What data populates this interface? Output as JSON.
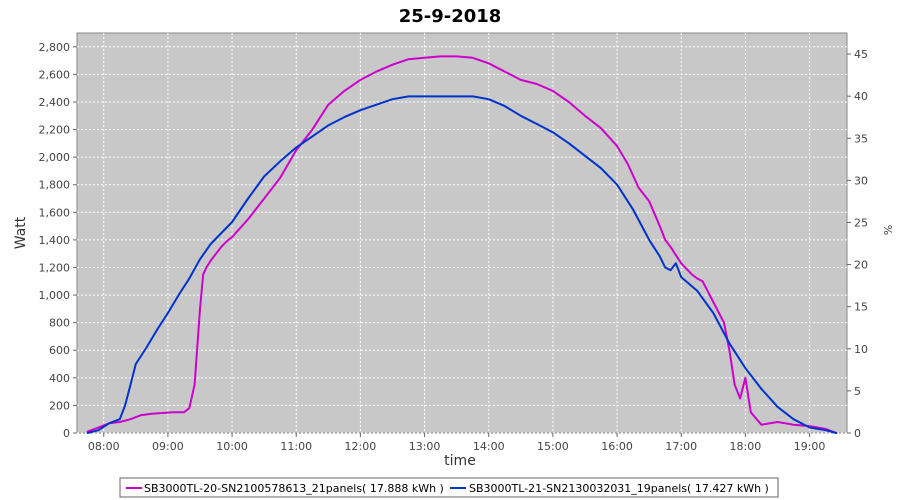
{
  "chart_data": {
    "type": "line",
    "title": "25-9-2018",
    "xlabel": "time",
    "ylabel": "Watt",
    "y2label": "%",
    "xlim": [
      "07:35",
      "19:35"
    ],
    "ylim": [
      0,
      2900
    ],
    "y2lim": [
      0,
      47.5
    ],
    "x_ticks": [
      "08:00",
      "09:00",
      "10:00",
      "11:00",
      "12:00",
      "13:00",
      "14:00",
      "15:00",
      "16:00",
      "17:00",
      "18:00",
      "19:00"
    ],
    "y_ticks": [
      "0",
      "200",
      "400",
      "600",
      "800",
      "1,000",
      "1,200",
      "1,400",
      "1,600",
      "1,800",
      "2,000",
      "2,200",
      "2,400",
      "2,600",
      "2,800"
    ],
    "y2_ticks": [
      "0",
      "5",
      "10",
      "15",
      "20",
      "25",
      "30",
      "35",
      "40",
      "45"
    ],
    "grid": true,
    "legend_position": "bottom",
    "series": [
      {
        "name": "SB3000TL-20-SN2100578613_21panels( 17.888 kWh )",
        "color": "#cc00cc",
        "x": [
          "07:45",
          "07:55",
          "08:05",
          "08:15",
          "08:25",
          "08:35",
          "08:45",
          "08:55",
          "09:05",
          "09:15",
          "09:20",
          "09:25",
          "09:30",
          "09:33",
          "09:36",
          "09:40",
          "09:45",
          "09:50",
          "09:55",
          "10:00",
          "10:15",
          "10:30",
          "10:45",
          "11:00",
          "11:15",
          "11:30",
          "11:45",
          "12:00",
          "12:15",
          "12:30",
          "12:45",
          "13:00",
          "13:15",
          "13:30",
          "13:45",
          "14:00",
          "14:15",
          "14:30",
          "14:45",
          "15:00",
          "15:15",
          "15:30",
          "15:45",
          "16:00",
          "16:10",
          "16:20",
          "16:30",
          "16:40",
          "16:45",
          "16:50",
          "17:00",
          "17:10",
          "17:15",
          "17:20",
          "17:30",
          "17:40",
          "17:45",
          "17:50",
          "17:55",
          "18:00",
          "18:05",
          "18:15",
          "18:30",
          "18:45",
          "19:00",
          "19:15",
          "19:25"
        ],
        "values": [
          10,
          40,
          70,
          80,
          100,
          130,
          140,
          145,
          150,
          150,
          180,
          350,
          900,
          1150,
          1200,
          1250,
          1300,
          1350,
          1390,
          1420,
          1550,
          1700,
          1850,
          2050,
          2200,
          2380,
          2480,
          2560,
          2620,
          2670,
          2710,
          2720,
          2730,
          2730,
          2720,
          2680,
          2620,
          2560,
          2530,
          2480,
          2400,
          2300,
          2210,
          2080,
          1950,
          1780,
          1680,
          1500,
          1400,
          1350,
          1230,
          1150,
          1120,
          1100,
          950,
          800,
          600,
          350,
          250,
          400,
          150,
          60,
          80,
          60,
          50,
          30,
          0
        ]
      },
      {
        "name": "SB3000TL-21-SN2130032031_19panels( 17.427 kWh )",
        "color": "#0033cc",
        "x": [
          "07:45",
          "07:55",
          "08:05",
          "08:15",
          "08:20",
          "08:25",
          "08:30",
          "08:40",
          "08:50",
          "09:00",
          "09:10",
          "09:20",
          "09:30",
          "09:40",
          "09:50",
          "10:00",
          "10:15",
          "10:30",
          "10:45",
          "11:00",
          "11:15",
          "11:30",
          "11:45",
          "12:00",
          "12:15",
          "12:30",
          "12:45",
          "13:00",
          "13:15",
          "13:30",
          "13:45",
          "14:00",
          "14:15",
          "14:30",
          "14:45",
          "15:00",
          "15:15",
          "15:30",
          "15:45",
          "16:00",
          "16:15",
          "16:30",
          "16:40",
          "16:45",
          "16:50",
          "16:55",
          "17:00",
          "17:15",
          "17:30",
          "17:45",
          "18:00",
          "18:15",
          "18:30",
          "18:45",
          "19:00",
          "19:15",
          "19:25"
        ],
        "values": [
          0,
          20,
          70,
          100,
          200,
          350,
          500,
          620,
          750,
          870,
          1000,
          1120,
          1260,
          1370,
          1450,
          1530,
          1700,
          1860,
          1970,
          2070,
          2150,
          2230,
          2290,
          2340,
          2380,
          2420,
          2440,
          2440,
          2440,
          2440,
          2440,
          2420,
          2370,
          2300,
          2240,
          2180,
          2100,
          2010,
          1920,
          1800,
          1620,
          1400,
          1280,
          1200,
          1180,
          1230,
          1130,
          1030,
          870,
          650,
          470,
          320,
          190,
          100,
          40,
          20,
          0
        ]
      }
    ]
  }
}
